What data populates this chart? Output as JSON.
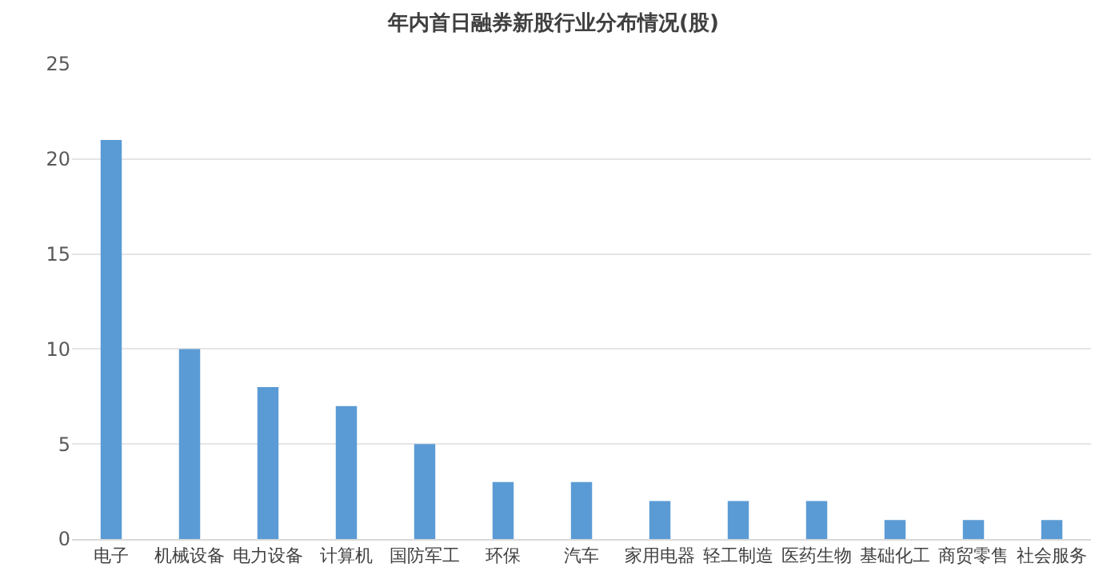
{
  "chart_data": {
    "type": "bar",
    "title": "年内首日融券新股行业分布情况(股)",
    "categories": [
      "电子",
      "机械设备",
      "电力设备",
      "计算机",
      "国防军工",
      "环保",
      "汽车",
      "家用电器",
      "轻工制造",
      "医药生物",
      "基础化工",
      "商贸零售",
      "社会服务"
    ],
    "values": [
      21,
      10,
      8,
      7,
      5,
      3,
      3,
      2,
      2,
      2,
      1,
      1,
      1
    ],
    "color": "#5b9bd5",
    "ylim": [
      0,
      25
    ],
    "yticks": [
      0,
      5,
      10,
      15,
      20,
      25
    ],
    "grid": "y"
  }
}
